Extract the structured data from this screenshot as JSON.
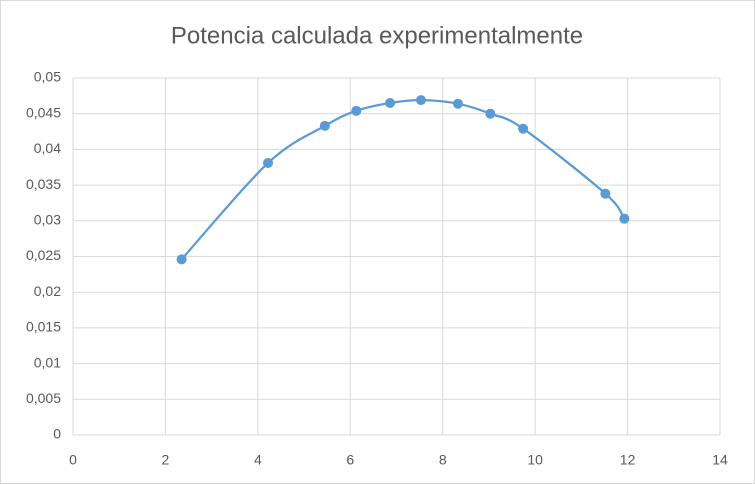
{
  "chart_data": {
    "type": "scatter",
    "title": "Potencia calculada experimentalmente",
    "series": [
      {
        "color": "#5b9bd5",
        "x": [
          2.35,
          4.22,
          5.45,
          6.13,
          6.86,
          7.53,
          8.33,
          9.03,
          9.74,
          11.52,
          11.93
        ],
        "values": [
          0.0246,
          0.0381,
          0.0433,
          0.0454,
          0.0465,
          0.0469,
          0.0464,
          0.045,
          0.0429,
          0.0338,
          0.0303
        ]
      }
    ],
    "smooth": true,
    "xlim": [
      0,
      14
    ],
    "xticks": [
      0,
      2,
      4,
      6,
      8,
      10,
      12,
      14
    ],
    "ylim": [
      0,
      0.05
    ],
    "yticks": [
      0,
      {
        "value": 0.005,
        "label": "0,005"
      },
      {
        "value": 0.01,
        "label": "0,01"
      },
      {
        "value": 0.015,
        "label": "0,015"
      },
      {
        "value": 0.02,
        "label": "0,02"
      },
      {
        "value": 0.025,
        "label": "0,025"
      },
      {
        "value": 0.03,
        "label": "0,03"
      },
      {
        "value": 0.035,
        "label": "0,035"
      },
      {
        "value": 0.04,
        "label": "0,04"
      },
      {
        "value": 0.045,
        "label": "0,045"
      },
      {
        "value": 0.05,
        "label": "0,05"
      }
    ],
    "grid": true
  }
}
